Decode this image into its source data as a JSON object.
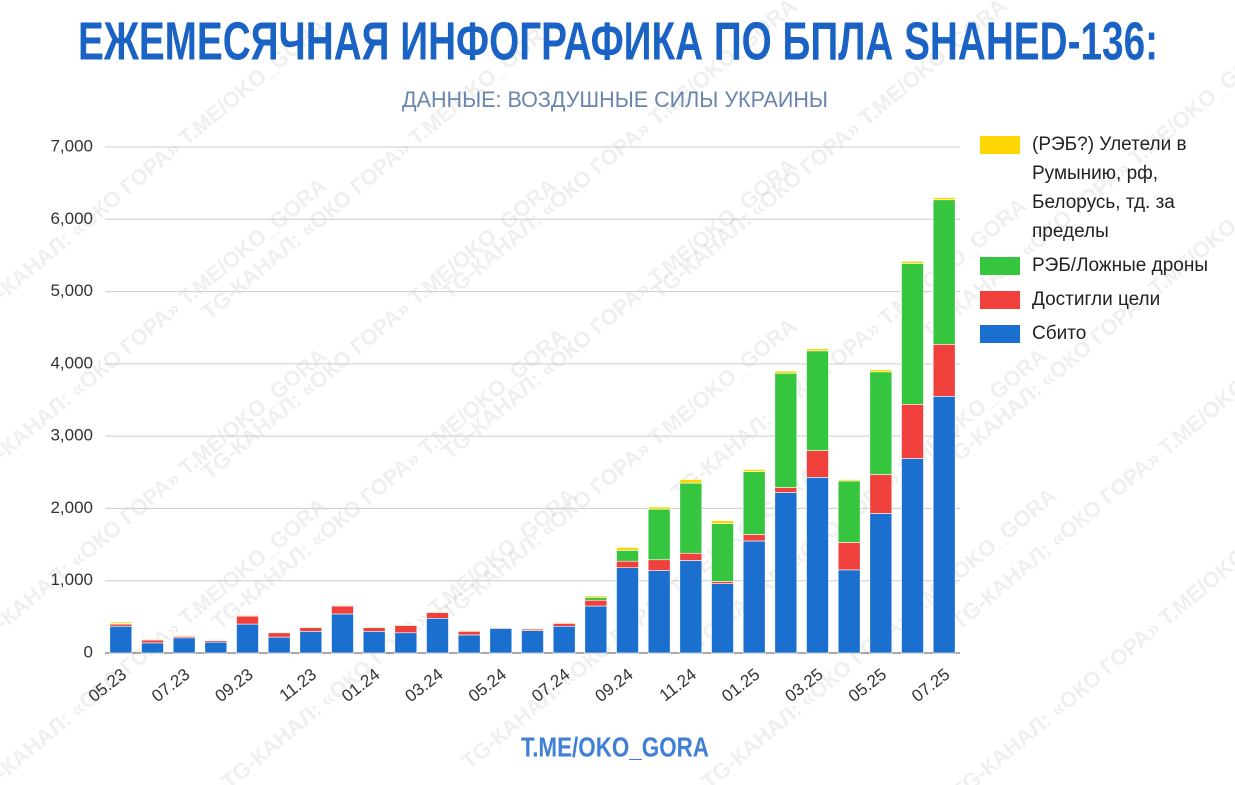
{
  "chart_data": {
    "type": "stacked-bar",
    "title": "ЕЖЕМЕСЯЧНАЯ ИНФОГРАФИКА ПО БПЛА SHAHED-136:",
    "subtitle": "ДАННЫЕ: ВОЗДУШНЫЕ СИЛЫ УКРАИНЫ",
    "footer": "T.ME/OKO_GORA",
    "watermark": "TG-КАНАЛ: «ОКО ГОРА» T.ME/OKO_GORA",
    "categories": [
      "05.23",
      null,
      "07.23",
      null,
      "09.23",
      null,
      "11.23",
      null,
      "01.24",
      null,
      "03.24",
      null,
      "05.24",
      null,
      "07.24",
      null,
      "09.24",
      null,
      "11.24",
      null,
      "01.25",
      null,
      "03.25",
      null,
      "05.25",
      null,
      "07.25"
    ],
    "series": [
      {
        "name": "Сбито",
        "color": "#1a6fcf",
        "values": [
          370,
          140,
          210,
          150,
          400,
          220,
          300,
          540,
          300,
          280,
          480,
          250,
          340,
          310,
          370,
          650,
          1180,
          1140,
          1280,
          960,
          1550,
          2220,
          2430,
          1150,
          1930,
          2690,
          3550
        ]
      },
      {
        "name": "Достигли цели",
        "color": "#f0403c",
        "values": [
          30,
          40,
          20,
          20,
          110,
          60,
          50,
          110,
          50,
          100,
          80,
          50,
          10,
          20,
          40,
          80,
          90,
          150,
          100,
          30,
          90,
          70,
          370,
          380,
          540,
          750,
          720
        ]
      },
      {
        "name": "РЭБ/Ложные дроны",
        "color": "#35c53e",
        "values": [
          10,
          10,
          10,
          5,
          10,
          5,
          10,
          10,
          10,
          10,
          10,
          10,
          10,
          10,
          10,
          40,
          150,
          700,
          970,
          800,
          870,
          1580,
          1380,
          850,
          1420,
          1950,
          2000
        ]
      },
      {
        "name": "(РЭБ?) Улетели в Румынию, рф, Белорусь, тд. за пределы",
        "color": "#ffd600",
        "values": [
          20,
          10,
          10,
          10,
          10,
          10,
          10,
          10,
          10,
          10,
          10,
          10,
          10,
          10,
          10,
          20,
          40,
          30,
          50,
          40,
          30,
          30,
          30,
          20,
          30,
          30,
          30
        ]
      }
    ],
    "ylim": [
      0,
      7000
    ],
    "yticks": [
      0,
      {
        "value": 1000,
        "label": "1,000"
      },
      {
        "value": 2000,
        "label": "2,000"
      },
      {
        "value": 3000,
        "label": "3,000"
      },
      {
        "value": 4000,
        "label": "4,000"
      },
      {
        "value": 5000,
        "label": "5,000"
      },
      {
        "value": 6000,
        "label": "6,000"
      },
      {
        "value": 7000,
        "label": "7,000"
      }
    ],
    "grid": true
  }
}
